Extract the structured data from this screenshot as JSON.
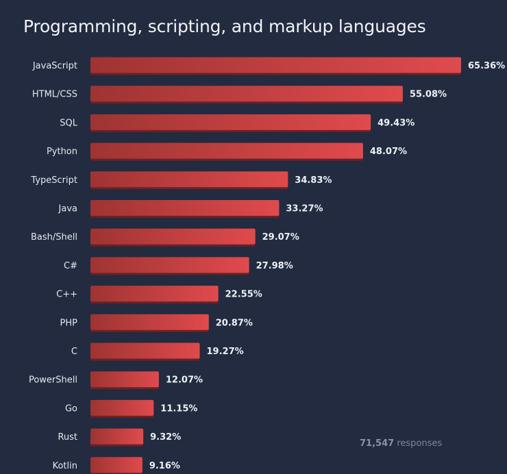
{
  "chart_data": {
    "type": "bar",
    "orientation": "horizontal",
    "title": "Programming, scripting, and markup languages",
    "xlabel": "",
    "ylabel": "",
    "unit": "%",
    "categories": [
      "JavaScript",
      "HTML/CSS",
      "SQL",
      "Python",
      "TypeScript",
      "Java",
      "Bash/Shell",
      "C#",
      "C++",
      "PHP",
      "C",
      "PowerShell",
      "Go",
      "Rust",
      "Kotlin"
    ],
    "values": [
      65.36,
      55.08,
      49.43,
      48.07,
      34.83,
      33.27,
      29.07,
      27.98,
      22.55,
      20.87,
      19.27,
      12.07,
      11.15,
      9.32,
      9.16
    ],
    "value_labels": [
      "65.36%",
      "55.08%",
      "49.43%",
      "48.07%",
      "34.83%",
      "33.27%",
      "29.07%",
      "27.98%",
      "22.55%",
      "20.87%",
      "19.27%",
      "12.07%",
      "11.15%",
      "9.32%",
      "9.16%"
    ],
    "xlim": [
      0,
      65.36
    ],
    "grid": false,
    "colors": {
      "background": "#222b40",
      "bar_start": "#9e3432",
      "bar_end": "#e04a4d",
      "bar_shadow": "#6f2024"
    }
  },
  "footer": {
    "responses_count": "71,547",
    "responses_label": "responses"
  }
}
